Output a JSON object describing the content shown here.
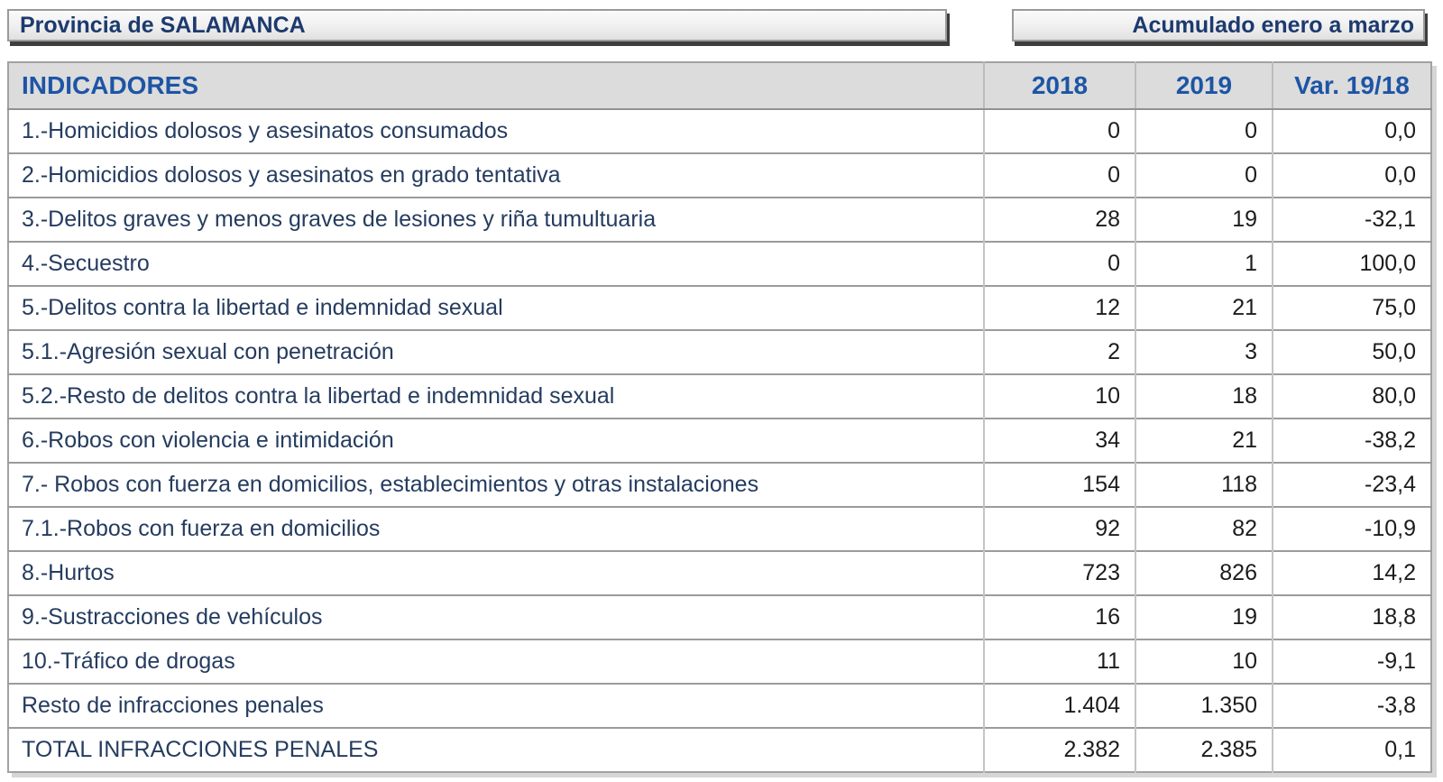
{
  "header": {
    "province": "Provincia de SALAMANCA",
    "period": "Acumulado enero a marzo"
  },
  "table": {
    "columns": [
      "INDICADORES",
      "2018",
      "2019",
      "Var. 19/18"
    ],
    "rows": [
      {
        "label": "1.-Homicidios dolosos y asesinatos consumados",
        "v2018": "0",
        "v2019": "0",
        "var1918": "0,0"
      },
      {
        "label": "2.-Homicidios dolosos y asesinatos en grado tentativa",
        "v2018": "0",
        "v2019": "0",
        "var1918": "0,0"
      },
      {
        "label": "3.-Delitos graves y menos graves de lesiones y riña tumultuaria",
        "v2018": "28",
        "v2019": "19",
        "var1918": "-32,1"
      },
      {
        "label": "4.-Secuestro",
        "v2018": "0",
        "v2019": "1",
        "var1918": "100,0"
      },
      {
        "label": "5.-Delitos contra la libertad e indemnidad sexual",
        "v2018": "12",
        "v2019": "21",
        "var1918": "75,0"
      },
      {
        "label": "5.1.-Agresión sexual con penetración",
        "v2018": "2",
        "v2019": "3",
        "var1918": "50,0"
      },
      {
        "label": "5.2.-Resto de delitos contra la libertad e indemnidad sexual",
        "v2018": "10",
        "v2019": "18",
        "var1918": "80,0"
      },
      {
        "label": "6.-Robos con violencia e intimidación",
        "v2018": "34",
        "v2019": "21",
        "var1918": "-38,2"
      },
      {
        "label": "7.- Robos con fuerza en domicilios, establecimientos y otras instalaciones",
        "v2018": "154",
        "v2019": "118",
        "var1918": "-23,4"
      },
      {
        "label": "7.1.-Robos con fuerza en domicilios",
        "v2018": "92",
        "v2019": "82",
        "var1918": "-10,9"
      },
      {
        "label": "8.-Hurtos",
        "v2018": "723",
        "v2019": "826",
        "var1918": "14,2"
      },
      {
        "label": "9.-Sustracciones de vehículos",
        "v2018": "16",
        "v2019": "19",
        "var1918": "18,8"
      },
      {
        "label": "10.-Tráfico de drogas",
        "v2018": "11",
        "v2019": "10",
        "var1918": "-9,1"
      },
      {
        "label": "Resto de infracciones penales",
        "v2018": "1.404",
        "v2019": "1.350",
        "var1918": "-3,8"
      },
      {
        "label": "TOTAL INFRACCIONES PENALES",
        "v2018": "2.382",
        "v2019": "2.385",
        "var1918": "0,1"
      }
    ]
  },
  "colors": {
    "column_header_text": "#1d55a5",
    "row_label_text": "#253c5f",
    "value_text": "#1c1c1c",
    "header_row_bg": "#dcdcdc",
    "box_title_text": "#1c3a6e",
    "box_shadow": "#3e3e3e"
  }
}
